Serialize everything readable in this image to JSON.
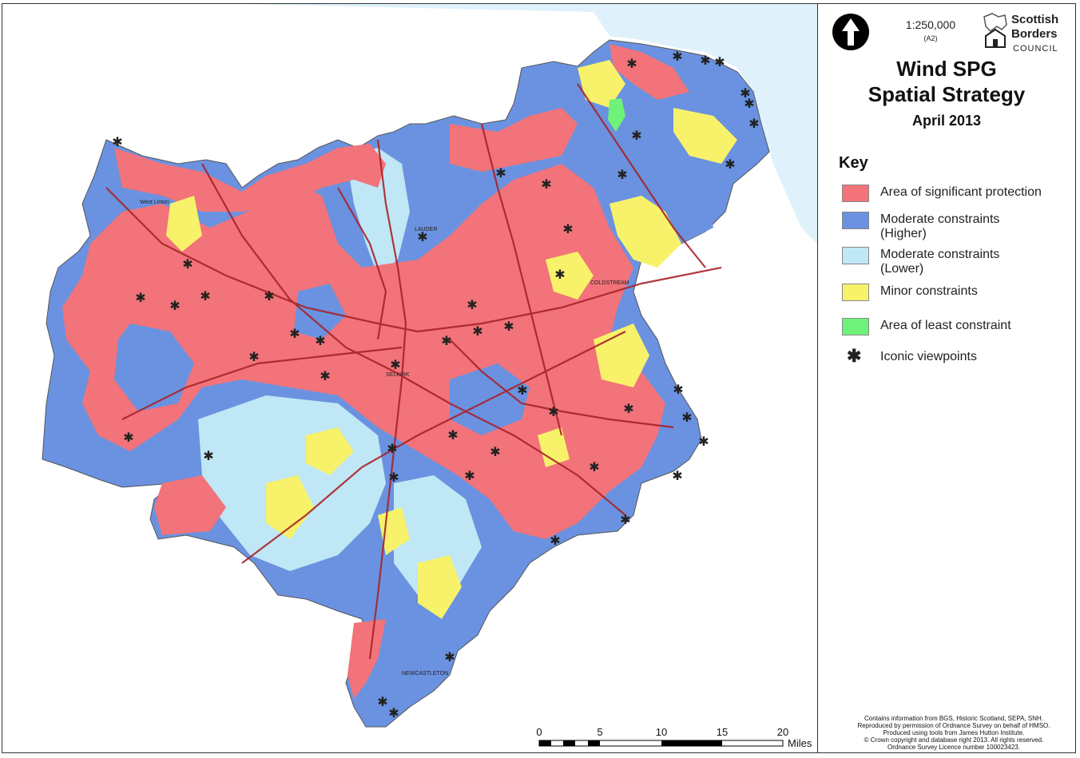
{
  "header": {
    "scale": "1:250,000",
    "paper_size": "(A2)",
    "north_arrow_icon": "north-arrow-icon"
  },
  "logo": {
    "line1": "Scottish",
    "line2": "Borders",
    "line3": "COUNCIL"
  },
  "title": {
    "line1": "Wind SPG",
    "line2": "Spatial Strategy",
    "date": "April 2013"
  },
  "key": {
    "heading": "Key",
    "items": [
      {
        "label_line1": "Area of significant protection",
        "label_line2": "",
        "color": "#f2737a"
      },
      {
        "label_line1": "Moderate constraints",
        "label_line2": "(Higher)",
        "color": "#6a92e0"
      },
      {
        "label_line1": "Moderate constraints",
        "label_line2": "(Lower)",
        "color": "#bfe7f5"
      },
      {
        "label_line1": "Minor constraints",
        "label_line2": "",
        "color": "#f7f26a"
      },
      {
        "label_line1": "Area of least constraint",
        "label_line2": "",
        "color": "#6ff27a"
      },
      {
        "label_line1": "Iconic viewpoints",
        "label_line2": "",
        "icon": "asterisk-icon"
      }
    ]
  },
  "scale_bar": {
    "labels": [
      "0",
      "5",
      "10",
      "15",
      "20"
    ],
    "unit": "Miles"
  },
  "credits": [
    "Contains information from BGS, Historic Scotland, SEPA, SNH.",
    "Reproduced by permission of Ordnance Survey on behalf of HMSO.",
    "Produced using tools from James Hutton Institute.",
    "© Crown copyright and database right 2013. All rights reserved.",
    "Ordnance Survey Licence number 100023423."
  ],
  "map_labels": {
    "town1": "West Linton",
    "town2": "LAUDER",
    "town3": "SELKIRK",
    "town4": "COLDSTREAM",
    "town5": "NEWCASTLETON"
  },
  "colors": {
    "sea": "#dff1fb",
    "protection": "#f2737a",
    "higher": "#6a92e0",
    "lower": "#bfe7f5",
    "minor": "#f7f26a",
    "least": "#6ff27a",
    "roads": "#a8232a"
  }
}
